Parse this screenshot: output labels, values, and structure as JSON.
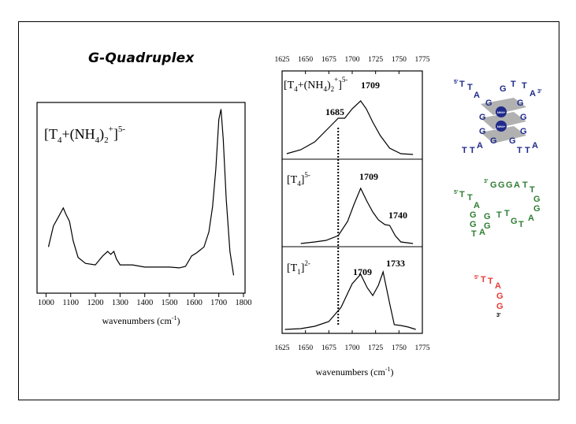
{
  "title": "G-Quadruplex",
  "chart_data": [
    {
      "type": "line",
      "panel": "full-spectrum",
      "label_main": "[T",
      "label_sub1": "4",
      "label_plus": "+(NH",
      "label_sub2": "4",
      "label_close": ")",
      "label_sub3": "2",
      "label_supplus": "+",
      "label_bracket": "]",
      "label_charge": "5-",
      "xlabel": "wavenumbers (cm",
      "xlabel_sup": "-1",
      "xlabel_end": ")",
      "xlim": [
        970,
        1800
      ],
      "xticks": [
        "1000",
        "1100",
        "1200",
        "1300",
        "1400",
        "1500",
        "1600",
        "1700",
        "1800"
      ],
      "grid": false,
      "x": [
        1010,
        1030,
        1050,
        1070,
        1080,
        1095,
        1110,
        1130,
        1160,
        1200,
        1230,
        1250,
        1262,
        1275,
        1285,
        1300,
        1350,
        1400,
        1450,
        1500,
        1540,
        1565,
        1590,
        1610,
        1640,
        1660,
        1675,
        1688,
        1700,
        1709,
        1718,
        1730,
        1745,
        1760
      ],
      "y": [
        0.13,
        0.27,
        0.33,
        0.39,
        0.35,
        0.3,
        0.17,
        0.06,
        0.02,
        0.01,
        0.07,
        0.1,
        0.08,
        0.1,
        0.05,
        0.01,
        0.01,
        -0.005,
        -0.005,
        -0.005,
        -0.01,
        0.0,
        0.07,
        0.09,
        0.13,
        0.23,
        0.4,
        0.65,
        0.98,
        1.05,
        0.85,
        0.45,
        0.1,
        -0.06
      ]
    },
    {
      "type": "line",
      "panel": "top",
      "label_main": "[T",
      "label_sub1": "4",
      "label_plus": "+(NH",
      "label_sub2": "4",
      "label_close": ")",
      "label_sub3": "2",
      "label_supplus": "+",
      "label_bracket": "]",
      "label_charge": "5-",
      "annotations": [
        "1685",
        "1709"
      ],
      "x": [
        1630,
        1645,
        1660,
        1670,
        1680,
        1685,
        1692,
        1700,
        1709,
        1715,
        1722,
        1730,
        1740,
        1752,
        1765
      ],
      "y": [
        0.05,
        0.1,
        0.2,
        0.32,
        0.44,
        0.5,
        0.5,
        0.62,
        0.72,
        0.62,
        0.45,
        0.28,
        0.12,
        0.05,
        0.04
      ]
    },
    {
      "type": "line",
      "panel": "middle",
      "label_main": "[T",
      "label_sub1": "4",
      "label_bracket": "]",
      "label_charge": "5-",
      "annotations": [
        "1709",
        "1740"
      ],
      "x": [
        1645,
        1660,
        1672,
        1685,
        1695,
        1702,
        1709,
        1716,
        1722,
        1728,
        1735,
        1740,
        1746,
        1752,
        1765
      ],
      "y": [
        0.02,
        0.04,
        0.06,
        0.12,
        0.3,
        0.52,
        0.72,
        0.55,
        0.42,
        0.32,
        0.26,
        0.25,
        0.12,
        0.04,
        0.02
      ]
    },
    {
      "type": "line",
      "panel": "bottom",
      "label_main": "[T",
      "label_sub1": "1",
      "label_bracket": "]",
      "label_charge": "2-",
      "annotations": [
        "1709",
        "1733"
      ],
      "xlabel": "wavenumbers (cm",
      "xlabel_sup": "-1",
      "xlabel_end": ")",
      "x": [
        1628,
        1645,
        1660,
        1675,
        1688,
        1700,
        1709,
        1716,
        1722,
        1728,
        1733,
        1740,
        1745,
        1752,
        1760,
        1768
      ],
      "y": [
        0.02,
        0.03,
        0.06,
        0.12,
        0.3,
        0.6,
        0.72,
        0.55,
        0.45,
        0.58,
        0.75,
        0.35,
        0.08,
        0.07,
        0.05,
        0.02
      ]
    }
  ],
  "stacked_axis": {
    "xlim": [
      1625,
      1775
    ],
    "xticks": [
      "1625",
      "1650",
      "1675",
      "1700",
      "1725",
      "1750",
      "1775"
    ],
    "dotted_marker": 1685
  },
  "structures": {
    "blue": {
      "color": "#1f2a8a",
      "labels": [
        "5'",
        "T",
        "T",
        "A",
        "G",
        "T",
        "T",
        "A",
        "3'",
        "G",
        "G",
        "G",
        "G",
        "G",
        "G",
        "G",
        "G",
        "T",
        "T",
        "A",
        "T",
        "T",
        "A",
        "NH4+",
        "NH4+"
      ]
    },
    "green": {
      "color": "#2e7d32",
      "labels": [
        "3'",
        "G",
        "G",
        "G",
        "A",
        "T",
        "T",
        "5'",
        "T",
        "T",
        "A",
        "G",
        "G",
        "G",
        "G",
        "T",
        "T",
        "A",
        "G",
        "G",
        "G",
        "T",
        "T",
        "A"
      ]
    },
    "red": {
      "color": "#e53935",
      "labels": [
        "5'",
        "T",
        "T",
        "A",
        "G",
        "G",
        "3'"
      ]
    }
  }
}
